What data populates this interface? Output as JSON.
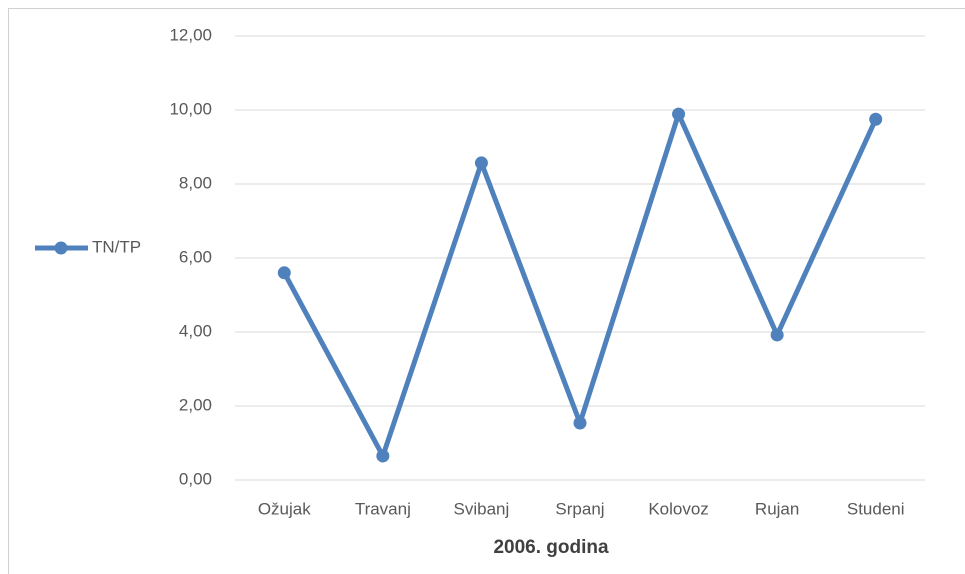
{
  "chart_data": {
    "type": "line",
    "x_label": "2006. godina",
    "categories": [
      "Ožujak",
      "Travanj",
      "Svibanj",
      "Srpanj",
      "Kolovoz",
      "Rujan",
      "Studeni"
    ],
    "series": [
      {
        "name": "TN/TP",
        "color": "#4f81bd",
        "values": [
          5.6,
          0.65,
          8.57,
          1.54,
          9.89,
          3.92,
          9.75
        ]
      }
    ],
    "ylim": [
      0,
      12
    ],
    "yticks": [
      {
        "value": 0,
        "label": "0,00"
      },
      {
        "value": 2,
        "label": "2,00"
      },
      {
        "value": 4,
        "label": "4,00"
      },
      {
        "value": 6,
        "label": "6,00"
      },
      {
        "value": 8,
        "label": "8,00"
      },
      {
        "value": 10,
        "label": "10,00"
      },
      {
        "value": 12,
        "label": "12,00"
      }
    ],
    "grid": true,
    "legend": "left"
  }
}
